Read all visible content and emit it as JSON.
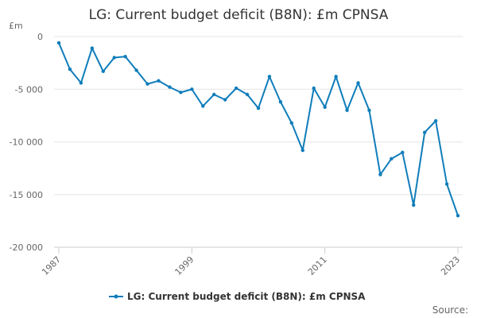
{
  "chart_data": {
    "type": "line",
    "title": "LG: Current budget deficit (B8N): £m CPNSA",
    "ylabel": "£m",
    "xlabel": "",
    "ylim": [
      -20000,
      0
    ],
    "xlim": [
      1987,
      2023
    ],
    "yticks": [
      0,
      -5000,
      -10000,
      -15000,
      -20000
    ],
    "ytick_labels": [
      "0",
      "-5 000",
      "-10 000",
      "-15 000",
      "-20 000"
    ],
    "xticks": [
      1987,
      1999,
      2011,
      2023
    ],
    "xtick_labels": [
      "1987",
      "1999",
      "2011",
      "2023"
    ],
    "grid": true,
    "legend_position": "bottom",
    "series": [
      {
        "name": "LG: Current budget deficit (B8N): £m CPNSA",
        "color": "#0f7dba",
        "x": [
          1987,
          1988,
          1989,
          1990,
          1991,
          1992,
          1993,
          1994,
          1995,
          1996,
          1997,
          1998,
          1999,
          2000,
          2001,
          2002,
          2003,
          2004,
          2005,
          2006,
          2007,
          2008,
          2009,
          2010,
          2011,
          2012,
          2013,
          2014,
          2015,
          2016,
          2017,
          2018,
          2019,
          2020,
          2021,
          2022,
          2023
        ],
        "values": [
          -600,
          -3100,
          -4400,
          -1100,
          -3300,
          -2000,
          -1900,
          -3200,
          -4500,
          -4200,
          -4800,
          -5300,
          -5000,
          -6600,
          -5500,
          -6000,
          -4900,
          -5500,
          -6800,
          -3800,
          -6200,
          -8200,
          -10800,
          -4900,
          -6700,
          -3800,
          -7000,
          -4400,
          -7000,
          -13100,
          -11600,
          -11000,
          -16000,
          -9100,
          -8000,
          -14000,
          -17000
        ]
      }
    ]
  },
  "footer": {
    "source_label": "Source:"
  }
}
